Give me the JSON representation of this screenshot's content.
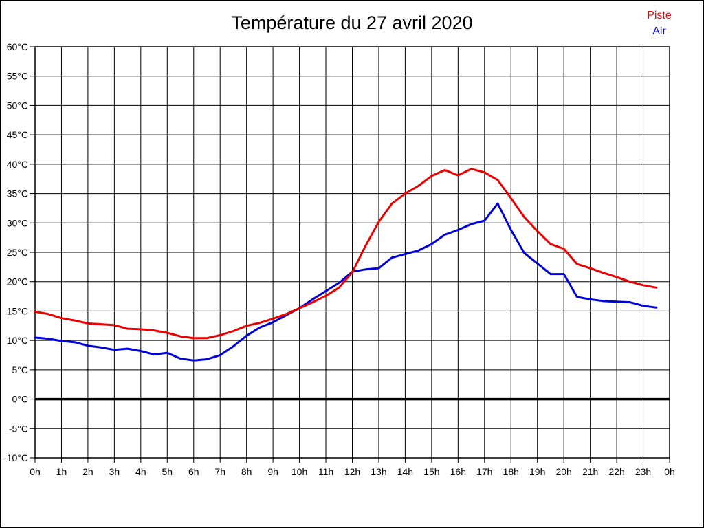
{
  "header": {
    "title": "Température du 27 avril 2020"
  },
  "legend": {
    "piste_label": "Piste",
    "air_label": "Air"
  },
  "colors": {
    "piste": "#ee0000",
    "air": "#0000dd",
    "grid": "#000000",
    "zero_line": "#000000",
    "background": "#ffffff"
  },
  "chart_data": {
    "type": "line",
    "title": "Température du 27 avril 2020",
    "xlabel": "",
    "ylabel": "",
    "xlim": [
      0,
      24
    ],
    "ylim": [
      -10,
      60
    ],
    "grid": true,
    "legend_position": "top-right",
    "x_tick_values": [
      0,
      1,
      2,
      3,
      4,
      5,
      6,
      7,
      8,
      9,
      10,
      11,
      12,
      13,
      14,
      15,
      16,
      17,
      18,
      19,
      20,
      21,
      22,
      23,
      24
    ],
    "x_tick_labels": [
      "0h",
      "1h",
      "2h",
      "3h",
      "4h",
      "5h",
      "6h",
      "7h",
      "8h",
      "9h",
      "10h",
      "11h",
      "12h",
      "13h",
      "14h",
      "15h",
      "16h",
      "17h",
      "18h",
      "19h",
      "20h",
      "21h",
      "22h",
      "23h",
      "0h"
    ],
    "y_tick_values": [
      60,
      55,
      50,
      45,
      40,
      35,
      30,
      25,
      20,
      15,
      10,
      5,
      0,
      -5,
      -10
    ],
    "y_tick_labels": [
      "60°C",
      "55°C",
      "50°C",
      "45°C",
      "40°C",
      "35°C",
      "30°C",
      "25°C",
      "20°C",
      "15°C",
      "10°C",
      "5°C",
      "0°C",
      "-5°C",
      "-10°C"
    ],
    "zero_line_value": 0,
    "x_hours": [
      0,
      0.5,
      1,
      1.5,
      2,
      2.5,
      3,
      3.5,
      4,
      4.5,
      5,
      5.5,
      6,
      6.5,
      7,
      7.5,
      8,
      8.5,
      9,
      9.5,
      10,
      10.5,
      11,
      11.5,
      12,
      12.5,
      13,
      13.5,
      14,
      14.5,
      15,
      15.5,
      16,
      16.5,
      17,
      17.5,
      18,
      18.5,
      19,
      19.5,
      20,
      20.5,
      21,
      21.5,
      22,
      22.5,
      23,
      23.5
    ],
    "series": [
      {
        "name": "Piste",
        "color": "#ee0000",
        "values": [
          14.9,
          14.5,
          13.8,
          13.4,
          12.9,
          12.75,
          12.6,
          12.0,
          11.9,
          11.7,
          11.3,
          10.7,
          10.4,
          10.4,
          10.9,
          11.6,
          12.5,
          13.0,
          13.7,
          14.5,
          15.5,
          16.5,
          17.6,
          19.0,
          21.6,
          26.1,
          30.2,
          33.3,
          35.0,
          36.3,
          38.0,
          39.0,
          38.1,
          39.2,
          38.6,
          37.3,
          34.2,
          31.0,
          28.6,
          26.4,
          25.6,
          23.0,
          22.3,
          21.5,
          20.8,
          20.0,
          19.4,
          19.0
        ]
      },
      {
        "name": "Air",
        "color": "#0000dd",
        "values": [
          10.5,
          10.3,
          9.9,
          9.7,
          9.1,
          8.8,
          8.4,
          8.6,
          8.2,
          7.6,
          7.9,
          6.9,
          6.6,
          6.8,
          7.5,
          9.0,
          10.8,
          12.2,
          13.1,
          14.3,
          15.5,
          17.0,
          18.4,
          19.8,
          21.7,
          22.1,
          22.3,
          24.1,
          24.7,
          25.3,
          26.4,
          28.0,
          28.8,
          29.8,
          30.4,
          33.3,
          28.8,
          24.9,
          23.1,
          21.3,
          21.3,
          17.4,
          17.0,
          16.7,
          16.6,
          16.5,
          15.9,
          15.6
        ]
      }
    ]
  }
}
